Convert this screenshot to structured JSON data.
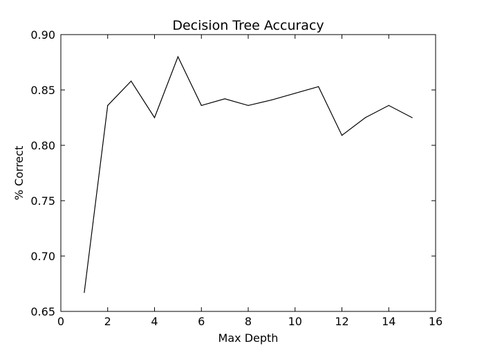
{
  "chart_data": {
    "type": "line",
    "title": "Decision Tree Accuracy",
    "xlabel": "Max Depth",
    "ylabel": "% Correct",
    "xlim": [
      0,
      16
    ],
    "ylim": [
      0.65,
      0.9
    ],
    "xticks": [
      0,
      2,
      4,
      6,
      8,
      10,
      12,
      14,
      16
    ],
    "yticks": [
      0.65,
      0.7,
      0.75,
      0.8,
      0.85,
      0.9
    ],
    "xtick_labels": [
      "0",
      "2",
      "4",
      "6",
      "8",
      "10",
      "12",
      "14",
      "16"
    ],
    "ytick_labels": [
      "0.65",
      "0.70",
      "0.75",
      "0.80",
      "0.85",
      "0.90"
    ],
    "grid": false,
    "legend": false,
    "line_color": "#000000",
    "x": [
      1,
      2,
      3,
      4,
      5,
      6,
      7,
      8,
      9,
      10,
      11,
      12,
      13,
      14,
      15
    ],
    "y": [
      0.667,
      0.836,
      0.858,
      0.825,
      0.88,
      0.836,
      0.842,
      0.836,
      0.841,
      0.847,
      0.853,
      0.809,
      0.825,
      0.836,
      0.825
    ]
  }
}
